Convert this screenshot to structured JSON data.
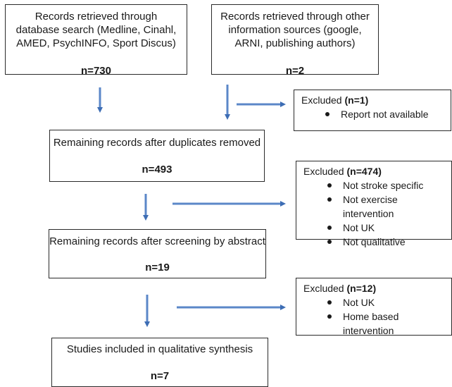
{
  "boxes": {
    "database": {
      "lines": [
        "Records retrieved through",
        "database search (Medline, Cinahl,",
        "AMED, PsychINFO, Sport Discus)"
      ],
      "count": "n=730"
    },
    "other": {
      "lines": [
        "Records retrieved through other",
        "information sources (google,",
        "ARNI, publishing authors)"
      ],
      "count": "n=2"
    },
    "duplicates": {
      "text": "Remaining records after duplicates removed",
      "count": "n=493"
    },
    "abstract": {
      "text": "Remaining records after screening by abstract",
      "count": "n=19"
    },
    "included": {
      "text": "Studies included in qualitative synthesis",
      "count": "n=7"
    }
  },
  "excluded": {
    "first": {
      "label": "Excluded ",
      "count": "(n=1)",
      "items": [
        "Report not available"
      ]
    },
    "second": {
      "label": "Excluded ",
      "count": "(n=474)",
      "items": [
        "Not stroke specific",
        "Not exercise intervention",
        "Not UK",
        "Not qualitative"
      ]
    },
    "third": {
      "label": "Excluded ",
      "count": "(n=12)",
      "items": [
        "Not UK",
        "Home based intervention"
      ]
    }
  },
  "colors": {
    "arrow": "#5b87c8",
    "arrow_edge": "#3d6db4",
    "border": "#2a2a2a"
  }
}
